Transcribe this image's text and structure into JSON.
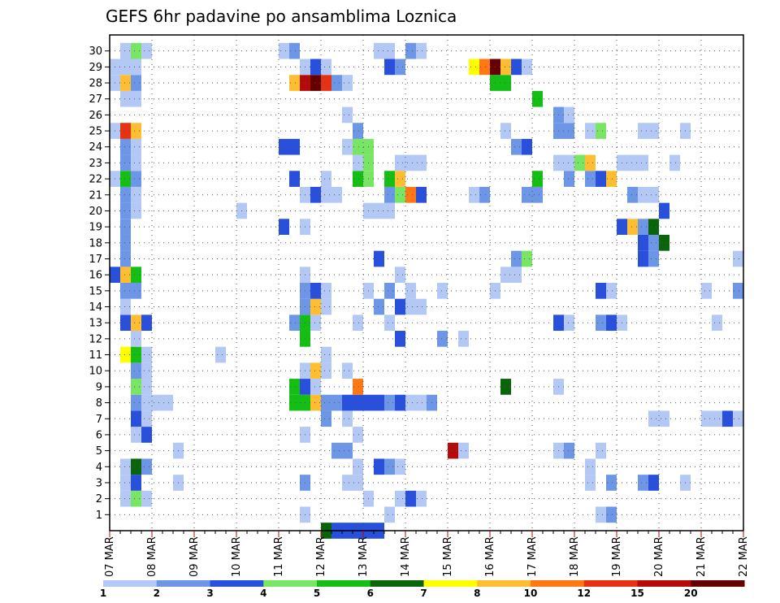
{
  "chart_data": {
    "type": "heatmap",
    "title": "GEFS 6hr padavine po ansamblima Loznica",
    "xlabel": "",
    "ylabel": "",
    "x_ticks": [
      "07 MAR",
      "08 MAR",
      "09 MAR",
      "10 MAR",
      "11 MAR",
      "12 MAR",
      "13 MAR",
      "14 MAR",
      "15 MAR",
      "16 MAR",
      "17 MAR",
      "18 MAR",
      "19 MAR",
      "20 MAR",
      "21 MAR",
      "22 MAR"
    ],
    "y_ticks": [
      "1",
      "2",
      "3",
      "4",
      "5",
      "6",
      "7",
      "8",
      "9",
      "10",
      "11",
      "12",
      "13",
      "14",
      "15",
      "16",
      "17",
      "18",
      "19",
      "20",
      "21",
      "22",
      "23",
      "24",
      "25",
      "26",
      "27",
      "28",
      "29",
      "30"
    ],
    "x_range": [
      0,
      60
    ],
    "y_range": [
      0,
      31
    ],
    "grid": true,
    "colorbar": {
      "bounds": [
        "1",
        "2",
        "3",
        "4",
        "5",
        "6",
        "7",
        "8",
        "10",
        "12",
        "15",
        "20"
      ],
      "colors": [
        "#b4c8f5",
        "#6e96e6",
        "#2850dc",
        "#78e664",
        "#14be14",
        "#0a640a",
        "#ffff00",
        "#ffbe32",
        "#ff7814",
        "#e63214",
        "#b40a0a",
        "#640000"
      ]
    },
    "cells_note": "each row = [member, x0, x1, colorClass]; x in 6-hour steps from 07 MAR 00Z (4 steps per day)",
    "cells": [
      [
        0,
        20,
        21,
        5
      ],
      [
        0,
        21,
        23,
        2
      ],
      [
        0,
        23,
        24,
        2
      ],
      [
        0,
        24,
        25,
        2
      ],
      [
        0,
        25,
        26,
        2
      ],
      [
        1,
        18,
        19,
        0
      ],
      [
        1,
        26,
        27,
        0
      ],
      [
        1,
        46,
        47,
        0
      ],
      [
        1,
        47,
        48,
        1
      ],
      [
        2,
        1,
        2,
        0
      ],
      [
        2,
        2,
        3,
        3
      ],
      [
        2,
        3,
        4,
        0
      ],
      [
        2,
        24,
        25,
        0
      ],
      [
        2,
        27,
        28,
        0
      ],
      [
        2,
        28,
        29,
        2
      ],
      [
        2,
        29,
        30,
        0
      ],
      [
        3,
        1,
        2,
        0
      ],
      [
        3,
        2,
        3,
        2
      ],
      [
        3,
        6,
        7,
        0
      ],
      [
        3,
        18,
        19,
        1
      ],
      [
        3,
        22,
        24,
        0
      ],
      [
        3,
        45,
        46,
        0
      ],
      [
        3,
        47,
        48,
        1
      ],
      [
        3,
        50,
        51,
        1
      ],
      [
        3,
        51,
        52,
        2
      ],
      [
        3,
        54,
        55,
        0
      ],
      [
        4,
        1,
        2,
        0
      ],
      [
        4,
        2,
        3,
        5
      ],
      [
        4,
        3,
        4,
        1
      ],
      [
        4,
        23,
        24,
        0
      ],
      [
        4,
        25,
        26,
        2
      ],
      [
        4,
        26,
        27,
        1
      ],
      [
        4,
        27,
        28,
        0
      ],
      [
        4,
        45,
        46,
        0
      ],
      [
        5,
        6,
        7,
        0
      ],
      [
        5,
        21,
        23,
        1
      ],
      [
        5,
        32,
        33,
        10
      ],
      [
        5,
        33,
        34,
        0
      ],
      [
        5,
        42,
        43,
        0
      ],
      [
        5,
        43,
        44,
        1
      ],
      [
        5,
        46,
        47,
        0
      ],
      [
        6,
        2,
        3,
        0
      ],
      [
        6,
        3,
        4,
        2
      ],
      [
        6,
        18,
        19,
        0
      ],
      [
        6,
        23,
        24,
        0
      ],
      [
        7,
        2,
        3,
        2
      ],
      [
        7,
        3,
        4,
        0
      ],
      [
        7,
        20,
        21,
        1
      ],
      [
        7,
        22,
        23,
        0
      ],
      [
        7,
        51,
        53,
        0
      ],
      [
        7,
        56,
        58,
        0
      ],
      [
        7,
        58,
        59,
        2
      ],
      [
        7,
        59,
        60,
        0
      ],
      [
        8,
        2,
        3,
        1
      ],
      [
        8,
        3,
        5,
        0
      ],
      [
        8,
        5,
        6,
        0
      ],
      [
        8,
        17,
        19,
        4
      ],
      [
        8,
        19,
        20,
        7
      ],
      [
        8,
        20,
        22,
        1
      ],
      [
        8,
        22,
        26,
        2
      ],
      [
        8,
        26,
        27,
        1
      ],
      [
        8,
        27,
        28,
        2
      ],
      [
        8,
        28,
        30,
        0
      ],
      [
        8,
        30,
        31,
        1
      ],
      [
        9,
        2,
        3,
        3
      ],
      [
        9,
        3,
        4,
        0
      ],
      [
        9,
        17,
        18,
        4
      ],
      [
        9,
        18,
        19,
        2
      ],
      [
        9,
        19,
        20,
        0
      ],
      [
        9,
        23,
        24,
        8
      ],
      [
        9,
        37,
        38,
        5
      ],
      [
        9,
        42,
        43,
        0
      ],
      [
        10,
        2,
        3,
        1
      ],
      [
        10,
        3,
        4,
        0
      ],
      [
        10,
        18,
        19,
        0
      ],
      [
        10,
        19,
        20,
        7
      ],
      [
        10,
        20,
        21,
        0
      ],
      [
        10,
        22,
        23,
        0
      ],
      [
        11,
        1,
        2,
        6
      ],
      [
        11,
        2,
        3,
        4
      ],
      [
        11,
        3,
        4,
        0
      ],
      [
        11,
        10,
        11,
        0
      ],
      [
        11,
        20,
        21,
        0
      ],
      [
        12,
        2,
        3,
        0
      ],
      [
        12,
        18,
        19,
        4
      ],
      [
        12,
        27,
        28,
        2
      ],
      [
        12,
        31,
        32,
        1
      ],
      [
        12,
        33,
        34,
        0
      ],
      [
        13,
        1,
        2,
        2
      ],
      [
        13,
        2,
        3,
        7
      ],
      [
        13,
        3,
        4,
        2
      ],
      [
        13,
        17,
        18,
        1
      ],
      [
        13,
        18,
        19,
        4
      ],
      [
        13,
        19,
        20,
        0
      ],
      [
        13,
        23,
        24,
        0
      ],
      [
        13,
        26,
        27,
        0
      ],
      [
        13,
        42,
        43,
        2
      ],
      [
        13,
        43,
        44,
        0
      ],
      [
        13,
        46,
        47,
        1
      ],
      [
        13,
        47,
        48,
        2
      ],
      [
        13,
        48,
        49,
        0
      ],
      [
        13,
        57,
        58,
        0
      ],
      [
        14,
        1,
        2,
        0
      ],
      [
        14,
        18,
        19,
        1
      ],
      [
        14,
        19,
        20,
        7
      ],
      [
        14,
        20,
        21,
        0
      ],
      [
        14,
        25,
        26,
        1
      ],
      [
        14,
        27,
        28,
        2
      ],
      [
        14,
        28,
        30,
        0
      ],
      [
        15,
        1,
        3,
        1
      ],
      [
        15,
        18,
        19,
        1
      ],
      [
        15,
        19,
        20,
        2
      ],
      [
        15,
        20,
        21,
        0
      ],
      [
        15,
        24,
        25,
        0
      ],
      [
        15,
        26,
        27,
        1
      ],
      [
        15,
        28,
        29,
        0
      ],
      [
        15,
        31,
        32,
        0
      ],
      [
        15,
        36,
        37,
        0
      ],
      [
        15,
        46,
        47,
        2
      ],
      [
        15,
        47,
        48,
        0
      ],
      [
        15,
        56,
        57,
        0
      ],
      [
        15,
        59,
        60,
        1
      ],
      [
        16,
        0,
        1,
        2
      ],
      [
        16,
        1,
        2,
        7
      ],
      [
        16,
        2,
        3,
        4
      ],
      [
        16,
        18,
        19,
        0
      ],
      [
        16,
        27,
        28,
        0
      ],
      [
        16,
        37,
        39,
        0
      ],
      [
        17,
        1,
        2,
        1
      ],
      [
        17,
        25,
        26,
        2
      ],
      [
        17,
        38,
        39,
        1
      ],
      [
        17,
        39,
        40,
        3
      ],
      [
        17,
        50,
        51,
        2
      ],
      [
        17,
        51,
        52,
        1
      ],
      [
        17,
        59,
        60,
        0
      ],
      [
        18,
        1,
        2,
        1
      ],
      [
        18,
        50,
        51,
        2
      ],
      [
        18,
        51,
        52,
        1
      ],
      [
        18,
        52,
        53,
        5
      ],
      [
        19,
        1,
        2,
        1
      ],
      [
        19,
        16,
        17,
        2
      ],
      [
        19,
        18,
        19,
        0
      ],
      [
        19,
        48,
        49,
        2
      ],
      [
        19,
        49,
        50,
        7
      ],
      [
        19,
        50,
        51,
        1
      ],
      [
        19,
        51,
        52,
        5
      ],
      [
        20,
        1,
        2,
        1
      ],
      [
        20,
        2,
        3,
        0
      ],
      [
        20,
        12,
        13,
        0
      ],
      [
        20,
        24,
        27,
        0
      ],
      [
        20,
        52,
        53,
        2
      ],
      [
        21,
        1,
        2,
        1
      ],
      [
        21,
        2,
        3,
        0
      ],
      [
        21,
        18,
        19,
        0
      ],
      [
        21,
        19,
        20,
        2
      ],
      [
        21,
        20,
        22,
        0
      ],
      [
        21,
        26,
        27,
        1
      ],
      [
        21,
        27,
        28,
        3
      ],
      [
        21,
        28,
        29,
        8
      ],
      [
        21,
        29,
        30,
        2
      ],
      [
        21,
        34,
        35,
        0
      ],
      [
        21,
        35,
        36,
        1
      ],
      [
        21,
        39,
        41,
        1
      ],
      [
        21,
        49,
        50,
        1
      ],
      [
        21,
        50,
        52,
        0
      ],
      [
        22,
        0,
        1,
        0
      ],
      [
        22,
        1,
        2,
        4
      ],
      [
        22,
        2,
        3,
        1
      ],
      [
        22,
        17,
        18,
        2
      ],
      [
        22,
        20,
        21,
        0
      ],
      [
        22,
        23,
        24,
        4
      ],
      [
        22,
        24,
        25,
        3
      ],
      [
        22,
        26,
        27,
        4
      ],
      [
        22,
        27,
        28,
        7
      ],
      [
        22,
        40,
        41,
        4
      ],
      [
        22,
        43,
        44,
        1
      ],
      [
        22,
        45,
        46,
        1
      ],
      [
        22,
        46,
        47,
        2
      ],
      [
        22,
        47,
        48,
        7
      ],
      [
        23,
        1,
        2,
        1
      ],
      [
        23,
        2,
        3,
        0
      ],
      [
        23,
        23,
        24,
        0
      ],
      [
        23,
        24,
        25,
        3
      ],
      [
        23,
        27,
        30,
        0
      ],
      [
        23,
        42,
        44,
        0
      ],
      [
        23,
        44,
        45,
        3
      ],
      [
        23,
        45,
        46,
        7
      ],
      [
        23,
        48,
        51,
        0
      ],
      [
        23,
        53,
        54,
        0
      ],
      [
        24,
        1,
        2,
        1
      ],
      [
        24,
        2,
        3,
        0
      ],
      [
        24,
        16,
        18,
        2
      ],
      [
        24,
        22,
        23,
        0
      ],
      [
        24,
        23,
        25,
        3
      ],
      [
        24,
        38,
        39,
        1
      ],
      [
        24,
        39,
        40,
        2
      ],
      [
        25,
        0,
        1,
        0
      ],
      [
        25,
        1,
        2,
        9
      ],
      [
        25,
        2,
        3,
        7
      ],
      [
        25,
        23,
        24,
        1
      ],
      [
        25,
        37,
        38,
        0
      ],
      [
        25,
        42,
        44,
        1
      ],
      [
        25,
        45,
        46,
        0
      ],
      [
        25,
        46,
        47,
        3
      ],
      [
        25,
        50,
        52,
        0
      ],
      [
        25,
        54,
        55,
        0
      ],
      [
        26,
        22,
        23,
        0
      ],
      [
        26,
        42,
        43,
        1
      ],
      [
        26,
        43,
        44,
        0
      ],
      [
        27,
        1,
        3,
        0
      ],
      [
        27,
        40,
        41,
        4
      ],
      [
        28,
        0,
        1,
        0
      ],
      [
        28,
        1,
        2,
        7
      ],
      [
        28,
        2,
        3,
        1
      ],
      [
        28,
        17,
        18,
        7
      ],
      [
        28,
        18,
        19,
        10
      ],
      [
        28,
        19,
        20,
        11
      ],
      [
        28,
        20,
        21,
        9
      ],
      [
        28,
        21,
        22,
        1
      ],
      [
        28,
        22,
        23,
        0
      ],
      [
        28,
        36,
        38,
        4
      ],
      [
        29,
        0,
        1,
        0
      ],
      [
        29,
        1,
        3,
        0
      ],
      [
        29,
        18,
        19,
        0
      ],
      [
        29,
        19,
        20,
        2
      ],
      [
        29,
        20,
        21,
        0
      ],
      [
        29,
        26,
        27,
        2
      ],
      [
        29,
        27,
        28,
        1
      ],
      [
        29,
        34,
        35,
        6
      ],
      [
        29,
        35,
        36,
        8
      ],
      [
        29,
        36,
        37,
        11
      ],
      [
        29,
        37,
        38,
        7
      ],
      [
        29,
        38,
        39,
        2
      ],
      [
        29,
        39,
        40,
        0
      ],
      [
        30,
        1,
        2,
        0
      ],
      [
        30,
        2,
        3,
        3
      ],
      [
        30,
        3,
        4,
        0
      ],
      [
        30,
        16,
        17,
        0
      ],
      [
        30,
        17,
        18,
        1
      ],
      [
        30,
        25,
        27,
        0
      ],
      [
        30,
        28,
        29,
        1
      ],
      [
        30,
        29,
        30,
        0
      ]
    ]
  }
}
